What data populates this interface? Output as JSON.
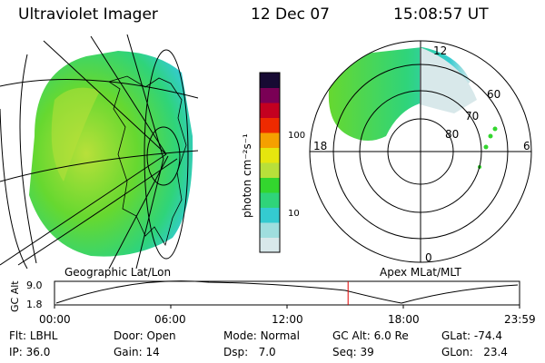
{
  "header": {
    "instrument": "Ultraviolet Imager",
    "date": "12 Dec 07",
    "time": "15:08:57 UT"
  },
  "colorbar": {
    "label": "photon cm⁻²s⁻¹",
    "ticks": [
      "100",
      "10"
    ],
    "colors": [
      "#d8e8ea",
      "#9fdede",
      "#34cbd0",
      "#2fd47a",
      "#33d62e",
      "#b8e03a",
      "#e6e60e",
      "#f5a000",
      "#ee2a00",
      "#c40020",
      "#7a0055",
      "#170a33"
    ]
  },
  "left_map": {
    "label": "Geographic Lat/Lon"
  },
  "right_map": {
    "label": "Apex  MLat/MLT",
    "mlt_labels": [
      "12",
      "18",
      "6",
      "0"
    ],
    "lat_labels": [
      "60",
      "70",
      "80"
    ]
  },
  "altitude_plot": {
    "ylabel": "GC Alt",
    "yticks": [
      "9.0",
      "1.8"
    ],
    "xticks": [
      "00:00",
      "06:00",
      "12:00",
      "18:00",
      "23:59"
    ],
    "marker_time_hours": 15.15
  },
  "status": {
    "rows": [
      [
        {
          "k": "Flt:",
          "v": "LBHL"
        },
        {
          "k": "Door:",
          "v": "Open"
        },
        {
          "k": "Mode:",
          "v": "Normal"
        },
        {
          "k": "GC Alt:",
          "v": "6.0 Re"
        },
        {
          "k": "GLat:",
          "v": "-74.4"
        }
      ],
      [
        {
          "k": "IP:",
          "v": "36.0"
        },
        {
          "k": "Gain:",
          "v": "14"
        },
        {
          "k": "Dsp:",
          "v": "7.0"
        },
        {
          "k": "Seq:",
          "v": "39"
        },
        {
          "k": "GLon:",
          "v": "23.4"
        }
      ]
    ]
  }
}
